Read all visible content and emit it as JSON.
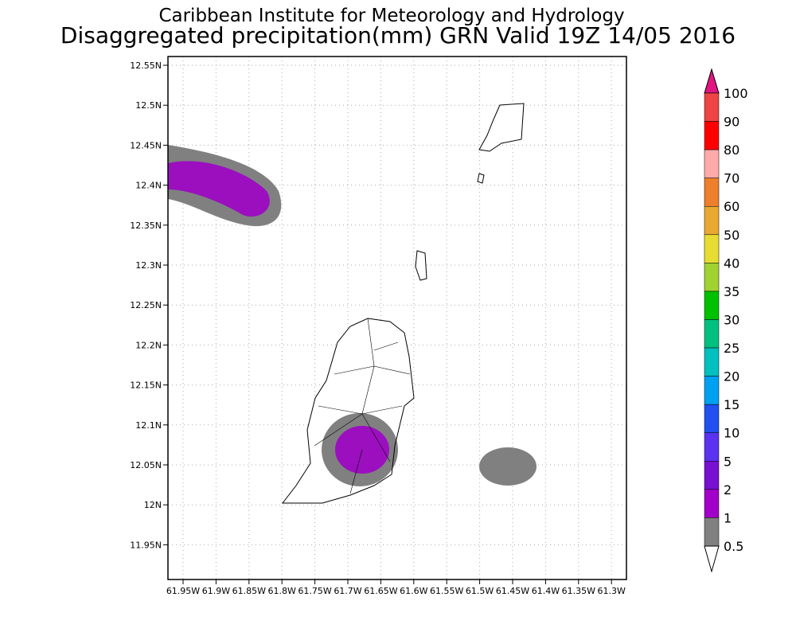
{
  "header": {
    "title": "Caribbean Institute for Meteorology and Hydrology",
    "subtitle": "Disaggregated precipitation(mm) GRN Valid 19Z 14/05 2016"
  },
  "map": {
    "lat_labels": [
      "12.55N",
      "12.5N",
      "12.45N",
      "12.4N",
      "12.35N",
      "12.3N",
      "12.25N",
      "12.2N",
      "12.15N",
      "12.1N",
      "12.05N",
      "12N",
      "11.95N"
    ],
    "lon_labels": [
      "61.95W",
      "61.9W",
      "61.85W",
      "61.8W",
      "61.75W",
      "61.7W",
      "61.65W",
      "61.6W",
      "61.55W",
      "61.5W",
      "61.45W",
      "61.4W",
      "61.35W",
      "61.3W"
    ]
  },
  "legend": {
    "levels": [
      "100",
      "90",
      "80",
      "70",
      "60",
      "50",
      "40",
      "35",
      "30",
      "25",
      "20",
      "15",
      "10",
      "5",
      "2",
      "1",
      "0.5"
    ],
    "colors": [
      "#ee4444",
      "#ff0000",
      "#ffaaaa",
      "#ee7f2d",
      "#e8a832",
      "#e6dc32",
      "#a0d232",
      "#00c000",
      "#00c080",
      "#00c0c0",
      "#00a0f0",
      "#2050f0",
      "#5a32f0",
      "#7810d2",
      "#a000c8",
      "#808080"
    ],
    "over_color": "#e0157f",
    "under_color": "#ffffff"
  }
}
